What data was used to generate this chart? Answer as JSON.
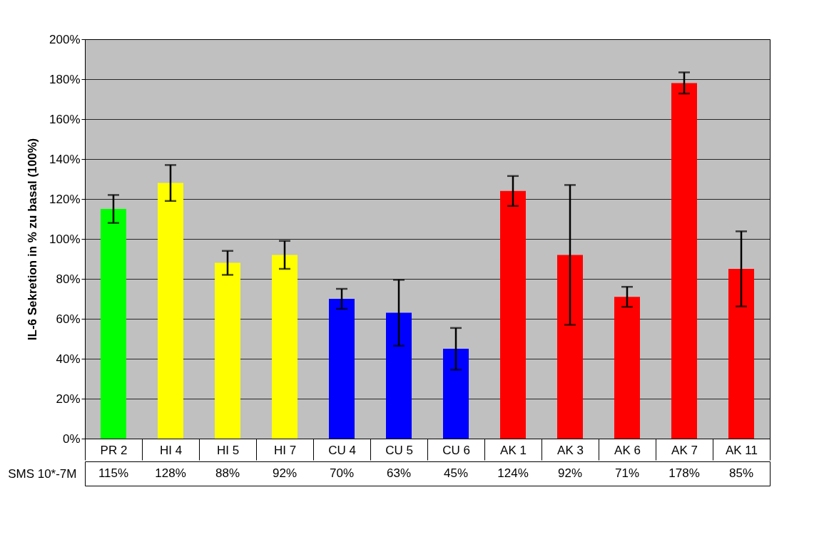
{
  "chart_data": {
    "type": "bar",
    "ylabel": "IL-6 Sekretion in % zu basal (100%)",
    "categories": [
      "PR 2",
      "HI 4",
      "HI 5",
      "HI 7",
      "CU 4",
      "CU 5",
      "CU 6",
      "AK 1",
      "AK 3",
      "AK 6",
      "AK 7",
      "AK 11"
    ],
    "series": [
      {
        "name": "SMS 10*-7M",
        "values": [
          115,
          128,
          88,
          92,
          70,
          63,
          45,
          124,
          92,
          71,
          178,
          85
        ],
        "colors": [
          "#00ff00",
          "#ffff00",
          "#ffff00",
          "#ffff00",
          "#0000ff",
          "#0000ff",
          "#0000ff",
          "#ff0000",
          "#ff0000",
          "#ff0000",
          "#ff0000",
          "#ff0000"
        ],
        "errors": [
          [
            108,
            122
          ],
          [
            119,
            137
          ],
          [
            82,
            94
          ],
          [
            85,
            99
          ],
          [
            65,
            75
          ],
          [
            46.5,
            79.5
          ],
          [
            34.5,
            55.4
          ],
          [
            116.5,
            131.5
          ],
          [
            57,
            127
          ],
          [
            66,
            76
          ],
          [
            172.8,
            183.4
          ],
          [
            66.2,
            103.8
          ]
        ],
        "value_labels": [
          "115%",
          "128%",
          "88%",
          "92%",
          "70%",
          "63%",
          "45%",
          "124%",
          "92%",
          "71%",
          "178%",
          "85%"
        ]
      }
    ],
    "ylim": [
      0,
      200
    ],
    "yticks": [
      {
        "value": 0,
        "label": "0%"
      },
      {
        "value": 20,
        "label": "20%"
      },
      {
        "value": 40,
        "label": "40%"
      },
      {
        "value": 60,
        "label": "60%"
      },
      {
        "value": 80,
        "label": "80%"
      },
      {
        "value": 100,
        "label": "100%"
      },
      {
        "value": 120,
        "label": "120%"
      },
      {
        "value": 140,
        "label": "140%"
      },
      {
        "value": 160,
        "label": "160%"
      },
      {
        "value": 180,
        "label": "180%"
      },
      {
        "value": 200,
        "label": "200%"
      }
    ],
    "grid": "y",
    "legend": false
  }
}
